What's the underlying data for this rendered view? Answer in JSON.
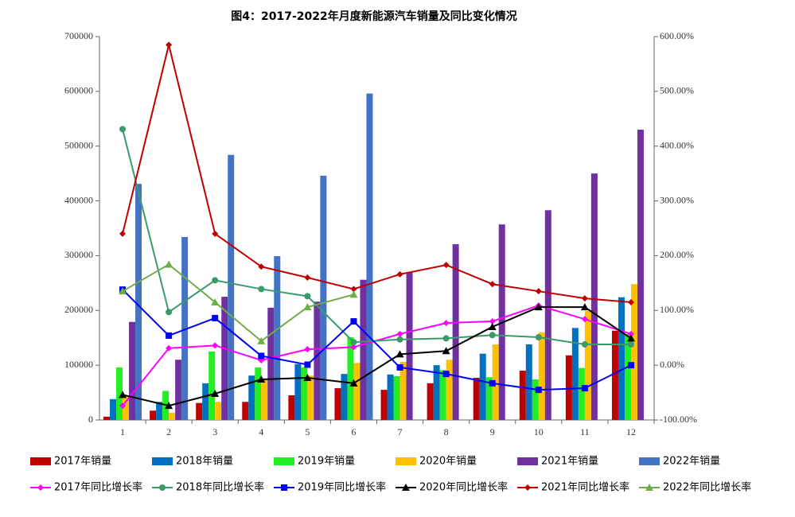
{
  "chart_data": {
    "type": "combo",
    "title": "图4：2017-2022年月度新能源汽车销量及同比变化情况",
    "categories": [
      "1",
      "2",
      "3",
      "4",
      "5",
      "6",
      "7",
      "8",
      "9",
      "10",
      "11",
      "12"
    ],
    "ylim": [
      0,
      700000
    ],
    "yticks": [
      0,
      100000,
      200000,
      300000,
      400000,
      500000,
      600000,
      700000
    ],
    "y2lim": [
      -100,
      600
    ],
    "y2ticks": [
      {
        "value": -100,
        "label": "-100.00%"
      },
      {
        "value": 0,
        "label": "0.00%"
      },
      {
        "value": 100,
        "label": "100.00%"
      },
      {
        "value": 200,
        "label": "200.00%"
      },
      {
        "value": 300,
        "label": "300.00%"
      },
      {
        "value": 400,
        "label": "400.00%"
      },
      {
        "value": 500,
        "label": "500.00%"
      },
      {
        "value": 600,
        "label": "600.00%"
      }
    ],
    "grid": false,
    "legend": "bottom",
    "series": [
      {
        "name": "2017年销量",
        "type": "bar",
        "color": "#c00000",
        "values": [
          6000,
          17000,
          31000,
          33000,
          45000,
          58000,
          55000,
          67000,
          77000,
          90000,
          118000,
          163000
        ]
      },
      {
        "name": "2018年销量",
        "type": "bar",
        "color": "#0070c0",
        "values": [
          38000,
          33000,
          67000,
          81000,
          102000,
          84000,
          83000,
          100000,
          121000,
          138000,
          168000,
          224000
        ]
      },
      {
        "name": "2019年销量",
        "type": "bar",
        "color": "#22ee22",
        "values": [
          96000,
          53000,
          125000,
          96000,
          96000,
          151000,
          80000,
          91000,
          78000,
          74000,
          95000,
          157000
        ]
      },
      {
        "name": "2020年销量",
        "type": "bar",
        "color": "#ffc000",
        "values": [
          44000,
          13000,
          33000,
          74000,
          81000,
          104000,
          106000,
          110000,
          138000,
          160000,
          199000,
          248000
        ]
      },
      {
        "name": "2021年销量",
        "type": "bar",
        "color": "#7030a0",
        "values": [
          179000,
          110000,
          225000,
          205000,
          216000,
          256000,
          270000,
          321000,
          357000,
          383000,
          450000,
          530000
        ]
      },
      {
        "name": "2022年销量",
        "type": "bar",
        "color": "#4472c4",
        "values": [
          431000,
          334000,
          484000,
          299000,
          446000,
          596000,
          null,
          null,
          null,
          null,
          null,
          null
        ]
      },
      {
        "name": "2017年同比增长率",
        "type": "line",
        "axis": "y2",
        "marker": "diamond",
        "color": "#ff00ff",
        "values": [
          -74,
          31,
          36,
          9,
          29,
          33,
          57,
          77,
          80,
          109,
          84,
          57
        ]
      },
      {
        "name": "2018年同比增长率",
        "type": "line",
        "axis": "y2",
        "marker": "circle",
        "color": "#3a9b6a",
        "values": [
          431,
          97,
          155,
          139,
          126,
          42,
          47,
          49,
          55,
          51,
          38,
          38
        ]
      },
      {
        "name": "2019年同比增长率",
        "type": "line",
        "axis": "y2",
        "marker": "square",
        "color": "#0000ff",
        "values": [
          138,
          54,
          86,
          17,
          1,
          80,
          -4,
          -16,
          -33,
          -45,
          -42,
          0
        ]
      },
      {
        "name": "2020年同比增长率",
        "type": "line",
        "axis": "y2",
        "marker": "triangle",
        "color": "#000000",
        "values": [
          -54,
          -74,
          -52,
          -26,
          -23,
          -33,
          20,
          26,
          70,
          106,
          106,
          49
        ]
      },
      {
        "name": "2021年同比增长率",
        "type": "line",
        "axis": "y2",
        "marker": "diamond",
        "color": "#c00000",
        "values": [
          240,
          585,
          240,
          180,
          160,
          139,
          166,
          183,
          148,
          135,
          122,
          115
        ]
      },
      {
        "name": "2022年同比增长率",
        "type": "line",
        "axis": "y2",
        "marker": "triangle",
        "color": "#70ad47",
        "values": [
          135,
          184,
          115,
          44,
          106,
          129,
          null,
          null,
          null,
          null,
          null,
          null
        ]
      }
    ]
  }
}
